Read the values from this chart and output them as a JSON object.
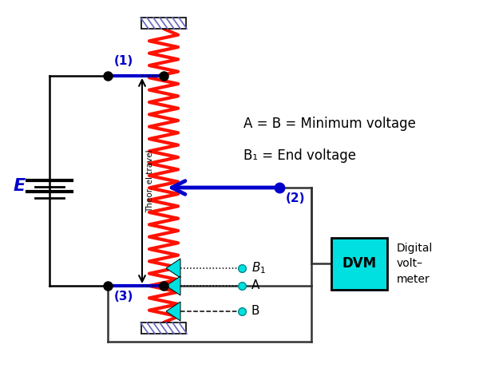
{
  "annotation_text1": "A = B = Minimum voltage",
  "annotation_text2": "B₁ = End voltage",
  "theor_label": "Theor. el travel",
  "E_label": "E",
  "label1": "(1)",
  "label2": "(2)",
  "label3": "(3)",
  "B1_label": "B₁",
  "A_label": "A",
  "B_label": "B",
  "DVM_label": "DVM",
  "digital_label": "Digital\nvolt–\nmeter",
  "pot_color": "#ff1100",
  "wire_color": "#0000cc",
  "node_color": "#000000",
  "teal_color": "#00e0e0",
  "hatch_color": "#6666bb",
  "circuit_color": "#333333",
  "black": "#000000"
}
